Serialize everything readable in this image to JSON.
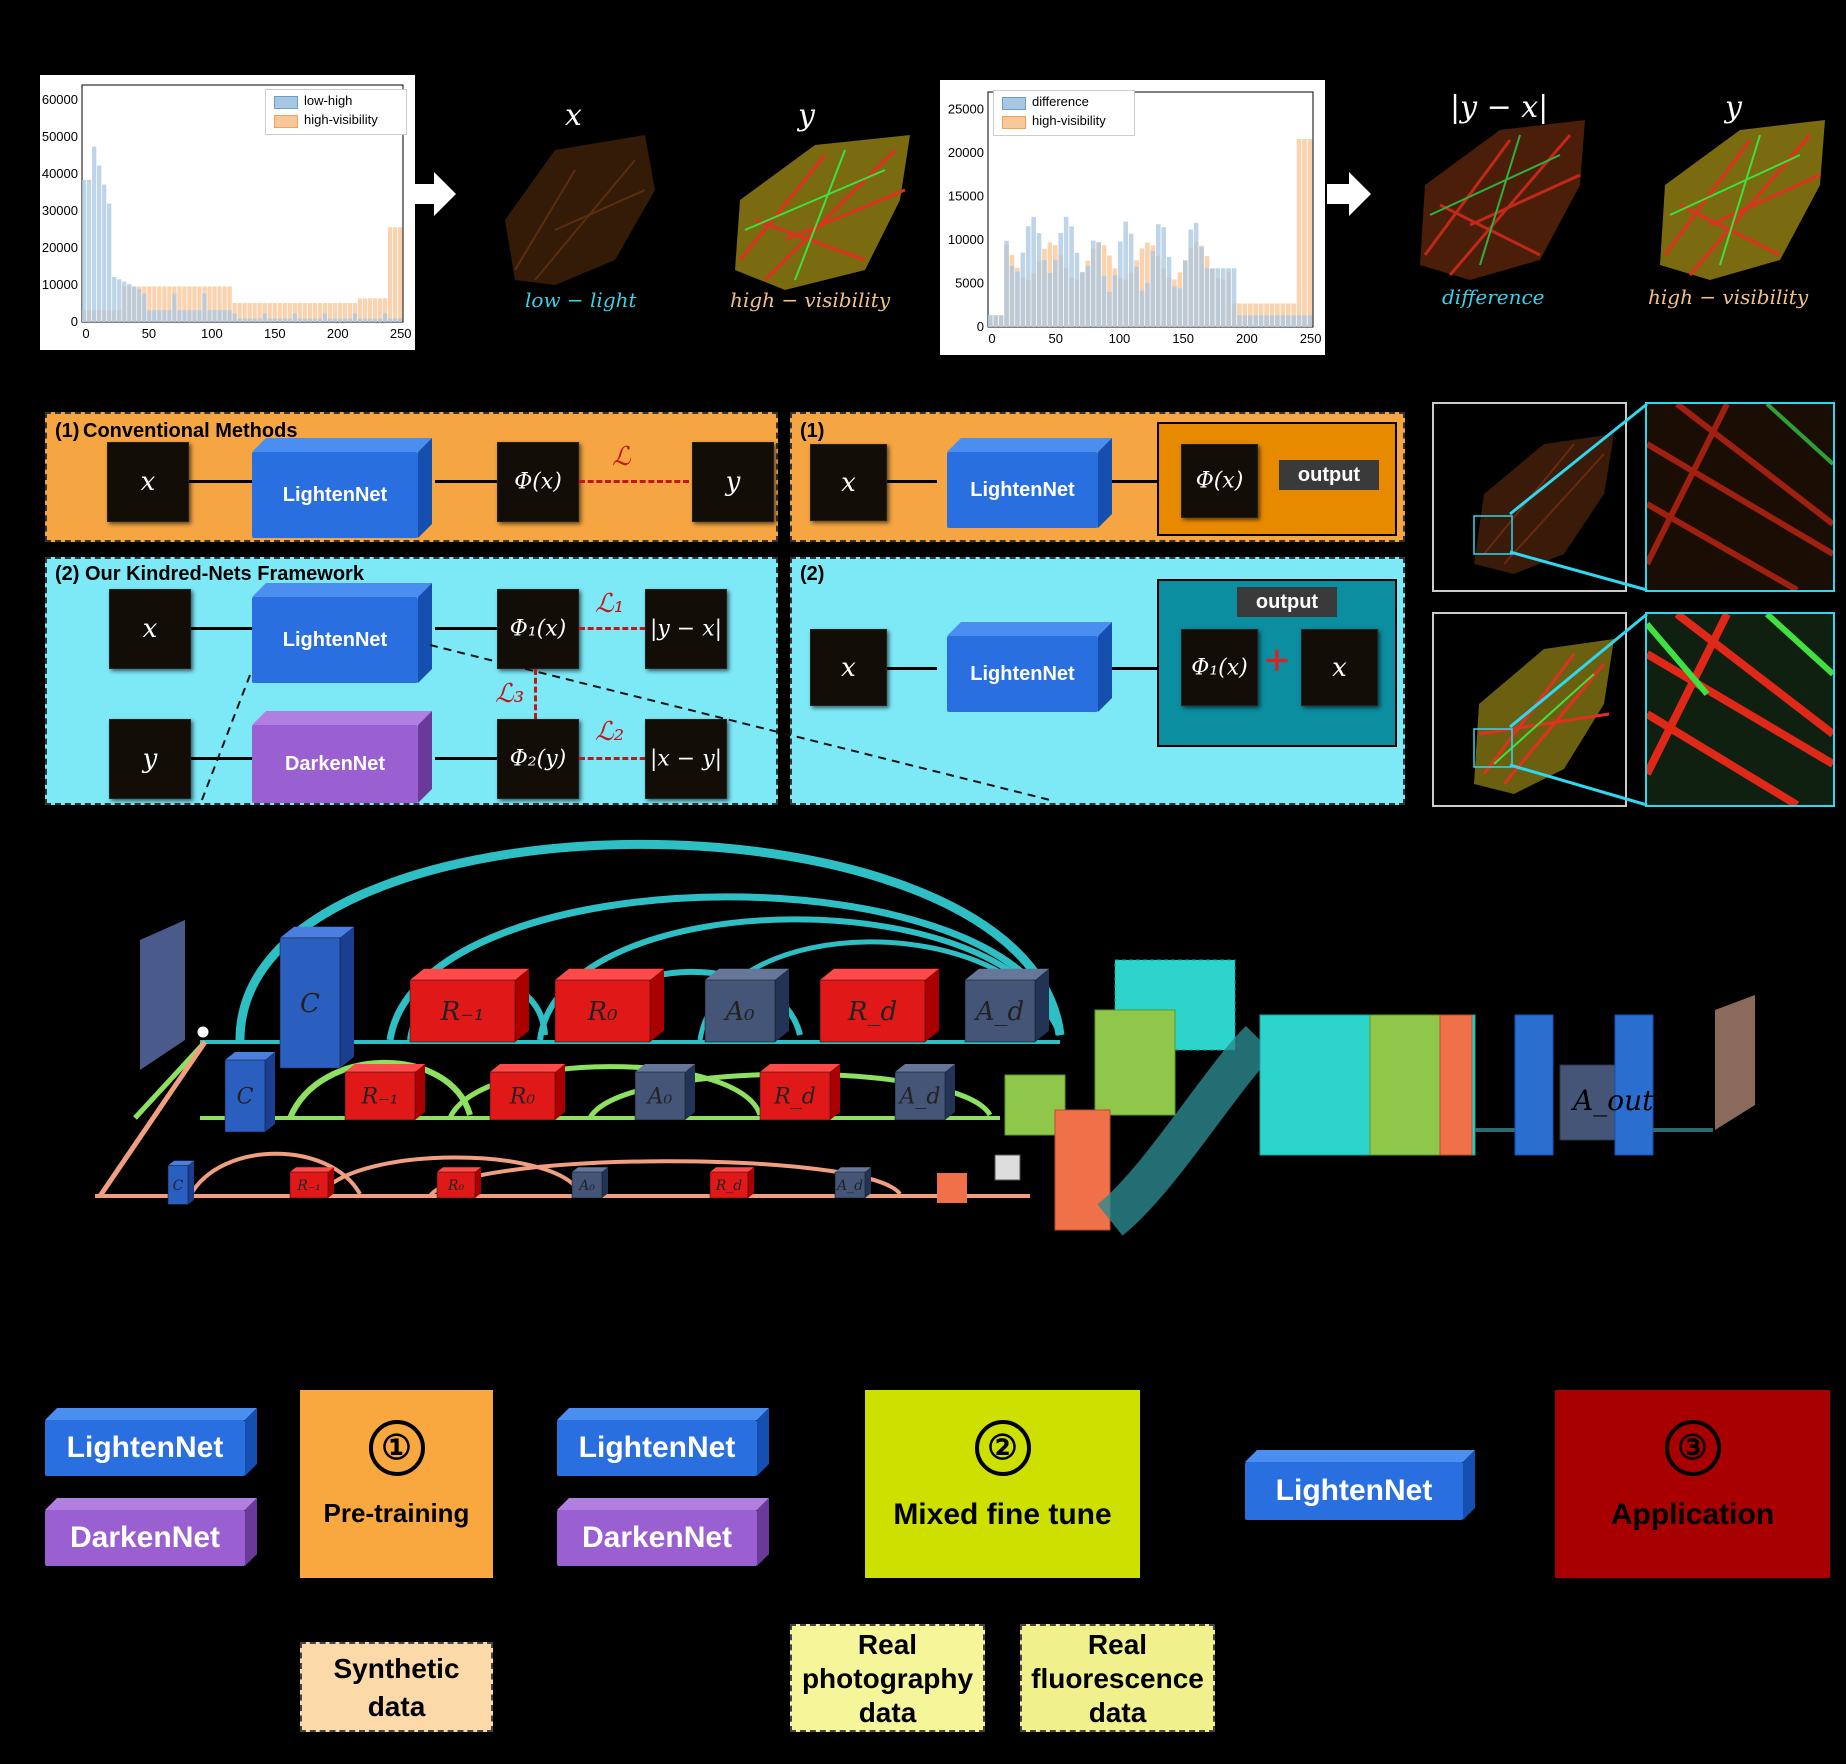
{
  "hist1": {
    "legend": [
      "low-high",
      "high-visibility"
    ],
    "yticks": [
      "0",
      "10000",
      "20000",
      "30000",
      "40000",
      "50000",
      "60000"
    ],
    "xticks": [
      "0",
      "50",
      "100",
      "150",
      "200",
      "250"
    ],
    "colors": {
      "s1": "#6b9ec8",
      "s2": "#f5a05a"
    }
  },
  "hist2": {
    "legend": [
      "difference",
      "high-visibility"
    ],
    "yticks": [
      "0",
      "5000",
      "10000",
      "15000",
      "20000",
      "25000"
    ],
    "xticks": [
      "0",
      "50",
      "100",
      "150",
      "200",
      "250"
    ]
  },
  "top_images": {
    "x_label": "x",
    "y_label": "y",
    "x_caption": "low − light",
    "y_caption": "high − visibility",
    "diff_label": "|y − x|",
    "y2_label": "y",
    "diff_caption": "difference",
    "y2_caption": "high − visibility"
  },
  "conv_panel": {
    "title_num": "(1)",
    "title": "Conventional Methods",
    "x": "x",
    "net": "LightenNet",
    "phi": "Φ(x)",
    "loss": "ℒ",
    "y": "y"
  },
  "kindred_panel": {
    "title": "(2) Our Kindred-Nets Framework",
    "x": "x",
    "y": "y",
    "net1": "LightenNet",
    "net2": "DarkenNet",
    "phi1": "Φ₁(x)",
    "phi2": "Φ₂(y)",
    "loss1": "ℒ₁",
    "loss2": "ℒ₂",
    "loss3": "ℒ₃",
    "t1": "|y − x|",
    "t2": "|x − y|"
  },
  "infer1": {
    "title": "(1)",
    "x": "x",
    "net": "LightenNet",
    "phi": "Φ(x)",
    "out": "output"
  },
  "infer2": {
    "title": "(2)",
    "x": "x",
    "net": "LightenNet",
    "phi": "Φ₁(x)",
    "plus": "+",
    "x2": "x",
    "out": "output"
  },
  "arch": {
    "row1": [
      "C",
      "R₋₁",
      "R₀",
      "A₀",
      "R_d",
      "A_d"
    ],
    "row2": [
      "C",
      "R₋₁",
      "R₀",
      "A₀",
      "R_d",
      "A_d"
    ],
    "row3": [
      "C",
      "R₋₁",
      "R₀",
      "A₀",
      "R_d",
      "A_d"
    ],
    "aout": "A_out"
  },
  "bottom": {
    "net_l": "LightenNet",
    "net_d": "DarkenNet",
    "stage1_num": "①",
    "stage1": "Pre-training",
    "stage2_num": "②",
    "stage2": "Mixed fine tune",
    "stage3_num": "③",
    "stage3": "Application",
    "data1": "Synthetic data",
    "data2": "Real photography data",
    "data3": "Real fluorescence data",
    "colors": {
      "stage1": "#f8a83f",
      "stage2": "#cde000",
      "stage3": "#a80000",
      "light": "#2a6fe0",
      "dark": "#9a5fd0"
    }
  }
}
